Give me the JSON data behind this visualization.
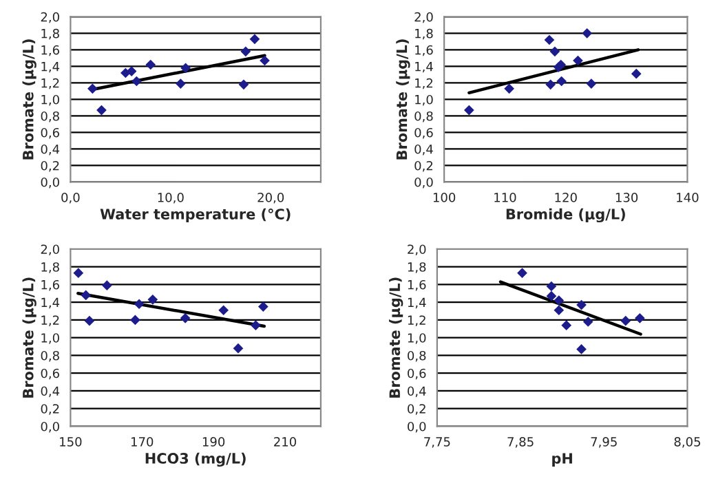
{
  "chart_data": [
    {
      "type": "scatter",
      "xlabel": "Water temperature (°C)",
      "ylabel": "Bromate (µg/L)",
      "xlim": [
        0,
        25
      ],
      "xticks": [
        {
          "value": 0,
          "label": "0,0"
        },
        {
          "value": 10,
          "label": "10,0"
        },
        {
          "value": 20,
          "label": "20,0"
        }
      ],
      "ylim": [
        0,
        2
      ],
      "yticks": [
        {
          "value": 0,
          "label": "0,0"
        },
        {
          "value": 0.2,
          "label": "0,2"
        },
        {
          "value": 0.4,
          "label": "0,4"
        },
        {
          "value": 0.6,
          "label": "0,6"
        },
        {
          "value": 0.8,
          "label": "0,8"
        },
        {
          "value": 1.0,
          "label": "1,0"
        },
        {
          "value": 1.2,
          "label": "1,2"
        },
        {
          "value": 1.4,
          "label": "1,4"
        },
        {
          "value": 1.6,
          "label": "1,6"
        },
        {
          "value": 1.8,
          "label": "1,8"
        },
        {
          "value": 2.0,
          "label": "2,0"
        }
      ],
      "grid": "y",
      "series": [
        {
          "marker": "diamond",
          "color": "#1c1c8c",
          "x": [
            2.2,
            3.1,
            5.5,
            6.1,
            6.6,
            8.0,
            11.0,
            11.5,
            17.3,
            17.5,
            18.4,
            19.4
          ],
          "values": [
            1.13,
            0.87,
            1.32,
            1.34,
            1.22,
            1.42,
            1.19,
            1.38,
            1.18,
            1.58,
            1.73,
            1.47
          ]
        },
        {
          "type": "line",
          "color": "#000000",
          "x": [
            2.2,
            19.4
          ],
          "values": [
            1.12,
            1.53
          ]
        }
      ]
    },
    {
      "type": "scatter",
      "xlabel": "Bromide (µg/L)",
      "ylabel": "Bromate (µg/L)",
      "xlim": [
        100,
        140
      ],
      "xticks": [
        100,
        110,
        120,
        130,
        140
      ],
      "ylim": [
        0,
        2
      ],
      "yticks": [
        {
          "value": 0,
          "label": "0,0"
        },
        {
          "value": 0.2,
          "label": "0,2"
        },
        {
          "value": 0.4,
          "label": "0,4"
        },
        {
          "value": 0.6,
          "label": "0,6"
        },
        {
          "value": 0.8,
          "label": "0,8"
        },
        {
          "value": 1.0,
          "label": "1,0"
        },
        {
          "value": 1.2,
          "label": "1,2"
        },
        {
          "value": 1.4,
          "label": "1,4"
        },
        {
          "value": 1.6,
          "label": "1,6"
        },
        {
          "value": 1.8,
          "label": "1,8"
        },
        {
          "value": 2.0,
          "label": "2,0"
        }
      ],
      "grid": "y",
      "series": [
        {
          "marker": "diamond",
          "color": "#1c1c8c",
          "x": [
            104.1,
            110.7,
            117.3,
            117.5,
            118.2,
            118.8,
            119.2,
            119.3,
            122.0,
            123.5,
            124.2,
            131.6
          ],
          "values": [
            0.87,
            1.13,
            1.72,
            1.18,
            1.58,
            1.39,
            1.42,
            1.22,
            1.47,
            1.8,
            1.19,
            1.31
          ]
        },
        {
          "type": "line",
          "color": "#000000",
          "x": [
            104.1,
            131.9
          ],
          "values": [
            1.08,
            1.6
          ]
        }
      ]
    },
    {
      "type": "scatter",
      "xlabel": "HCO3 (mg/L)",
      "ylabel": "Bromate (µg/L)",
      "xlim": [
        150,
        220
      ],
      "xticks": [
        150,
        170,
        190,
        210
      ],
      "ylim": [
        0,
        2
      ],
      "yticks": [
        {
          "value": 0,
          "label": "0,0"
        },
        {
          "value": 0.2,
          "label": "0,2"
        },
        {
          "value": 0.4,
          "label": "0,4"
        },
        {
          "value": 0.6,
          "label": "0,6"
        },
        {
          "value": 0.8,
          "label": "0,8"
        },
        {
          "value": 1.0,
          "label": "1,0"
        },
        {
          "value": 1.2,
          "label": "1,2"
        },
        {
          "value": 1.4,
          "label": "1,4"
        },
        {
          "value": 1.6,
          "label": "1,6"
        },
        {
          "value": 1.8,
          "label": "1,8"
        },
        {
          "value": 2.0,
          "label": "2,0"
        }
      ],
      "grid": "y",
      "series": [
        {
          "marker": "diamond",
          "color": "#1c1c8c",
          "x": [
            152.2,
            154.3,
            155.3,
            160.2,
            168.1,
            169.2,
            173.0,
            182.1,
            192.8,
            196.9,
            201.8,
            203.9
          ],
          "values": [
            1.73,
            1.48,
            1.19,
            1.59,
            1.2,
            1.38,
            1.43,
            1.22,
            1.31,
            0.88,
            1.14,
            1.35
          ]
        },
        {
          "type": "line",
          "color": "#000000",
          "x": [
            152.1,
            204.2
          ],
          "values": [
            1.5,
            1.13
          ]
        }
      ]
    },
    {
      "type": "scatter",
      "xlabel": "pH",
      "ylabel": "Bromate (µg/L)",
      "xlim": [
        7.75,
        8.05
      ],
      "xticks": [
        {
          "value": 7.75,
          "label": "7,75"
        },
        {
          "value": 7.85,
          "label": "7,85"
        },
        {
          "value": 7.95,
          "label": "7,95"
        },
        {
          "value": 8.05,
          "label": "8,05"
        }
      ],
      "ylim": [
        0,
        2
      ],
      "yticks": [
        {
          "value": 0,
          "label": "0,0"
        },
        {
          "value": 0.2,
          "label": "0,2"
        },
        {
          "value": 0.4,
          "label": "0,4"
        },
        {
          "value": 0.6,
          "label": "0,6"
        },
        {
          "value": 0.8,
          "label": "0,8"
        },
        {
          "value": 1.0,
          "label": "1,0"
        },
        {
          "value": 1.2,
          "label": "1,2"
        },
        {
          "value": 1.4,
          "label": "1,4"
        },
        {
          "value": 1.6,
          "label": "1,6"
        },
        {
          "value": 1.8,
          "label": "1,8"
        },
        {
          "value": 2.0,
          "label": "2,0"
        }
      ],
      "grid": "y",
      "series": [
        {
          "marker": "diamond",
          "color": "#1c1c8c",
          "x": [
            7.852,
            7.887,
            7.887,
            7.896,
            7.896,
            7.905,
            7.923,
            7.923,
            7.931,
            7.976,
            7.993
          ],
          "values": [
            1.73,
            1.58,
            1.47,
            1.42,
            1.31,
            1.14,
            1.37,
            0.87,
            1.18,
            1.19,
            1.22
          ]
        },
        {
          "type": "line",
          "color": "#000000",
          "x": [
            7.826,
            7.994
          ],
          "values": [
            1.63,
            1.04
          ]
        }
      ]
    }
  ]
}
